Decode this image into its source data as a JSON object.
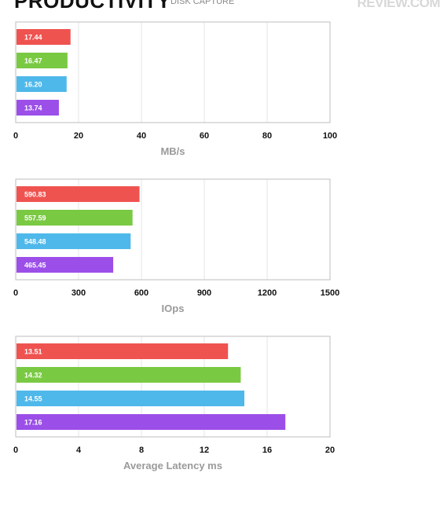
{
  "header": {
    "title": "PRODUCTIVITY",
    "subtitle": "DISK CAPTURE",
    "logo_text": "REVIEW.COM"
  },
  "colors": {
    "red": "#ef5350",
    "green": "#7ac943",
    "blue": "#4fb8ea",
    "purple": "#9b4fe8",
    "grid": "#e6e6e6",
    "frame": "#bdbdbd"
  },
  "chart_data": [
    {
      "type": "bar",
      "orientation": "horizontal",
      "xlabel": "MB/s",
      "xlim": [
        0,
        100
      ],
      "ticks": [
        0,
        20,
        40,
        60,
        80,
        100
      ],
      "values": [
        17.44,
        16.47,
        16.2,
        13.74
      ],
      "labels": [
        "17.44",
        "16.47",
        "16.20",
        "13.74"
      ],
      "bar_colors": [
        "red",
        "green",
        "blue",
        "purple"
      ],
      "grid": true
    },
    {
      "type": "bar",
      "orientation": "horizontal",
      "xlabel": "IOps",
      "xlim": [
        0,
        1500
      ],
      "ticks": [
        0,
        300,
        600,
        900,
        1200,
        1500
      ],
      "values": [
        590.83,
        557.59,
        548.48,
        465.45
      ],
      "labels": [
        "590.83",
        "557.59",
        "548.48",
        "465.45"
      ],
      "bar_colors": [
        "red",
        "green",
        "blue",
        "purple"
      ],
      "grid": true
    },
    {
      "type": "bar",
      "orientation": "horizontal",
      "xlabel": "Average Latency ms",
      "xlim": [
        0,
        20
      ],
      "ticks": [
        0,
        4,
        8,
        12,
        16,
        20
      ],
      "values": [
        13.51,
        14.32,
        14.55,
        17.16
      ],
      "labels": [
        "13.51",
        "14.32",
        "14.55",
        "17.16"
      ],
      "bar_colors": [
        "red",
        "green",
        "blue",
        "purple"
      ],
      "grid": true
    }
  ]
}
